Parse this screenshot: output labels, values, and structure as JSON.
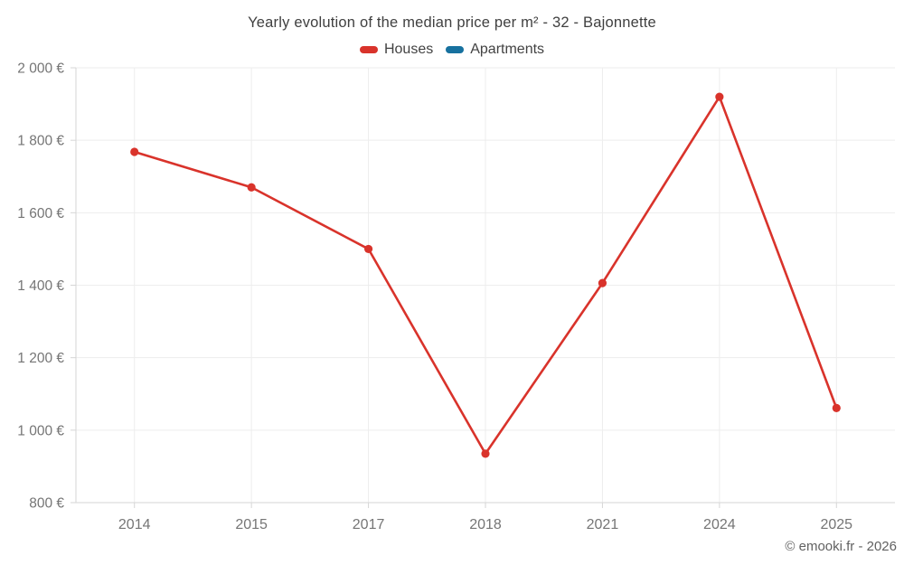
{
  "chart_data": {
    "type": "line",
    "title": "Yearly evolution of the median price per m² - 32 - Bajonnette",
    "categories": [
      "2014",
      "2015",
      "2017",
      "2018",
      "2021",
      "2024",
      "2025"
    ],
    "series": [
      {
        "name": "Houses",
        "color": "#d9332b",
        "values": [
          1768,
          1670,
          1500,
          935,
          1406,
          1920,
          1061
        ]
      },
      {
        "name": "Apartments",
        "color": "#17719f",
        "values": []
      }
    ],
    "ylim": [
      800,
      2000
    ],
    "ytick_step": 200,
    "ytick_suffix": " €",
    "grid": true,
    "legend_position": "top",
    "xlabel": "",
    "ylabel": ""
  },
  "footer": {
    "copyright": "© emooki.fr - 2026"
  },
  "colors": {
    "grid": "#ededed",
    "axis": "#d6d6d6",
    "tick_label": "#757575",
    "title_text": "#404040",
    "legend_text": "#424242"
  }
}
